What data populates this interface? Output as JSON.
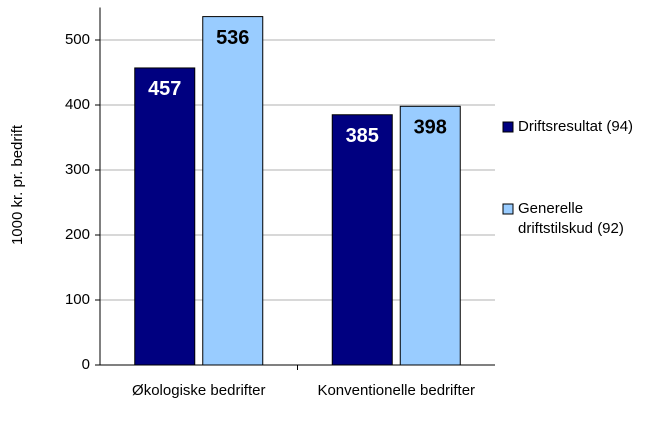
{
  "chart_data": {
    "type": "bar",
    "y_label": "1000 kr. pr. bedrift",
    "categories": [
      "Økologiske bedrifter",
      "Konventionelle bedrifter"
    ],
    "series": [
      {
        "name": "Driftsresultat (94)",
        "color": "#000080",
        "values": [
          457,
          385
        ]
      },
      {
        "name": "Generelle driftstilskud (92)",
        "color": "#99ccff",
        "values": [
          536,
          398
        ]
      }
    ],
    "ylim": [
      0,
      550
    ],
    "yticks": [
      0,
      100,
      200,
      300,
      400,
      500
    ],
    "grid": true,
    "legend": "right"
  }
}
